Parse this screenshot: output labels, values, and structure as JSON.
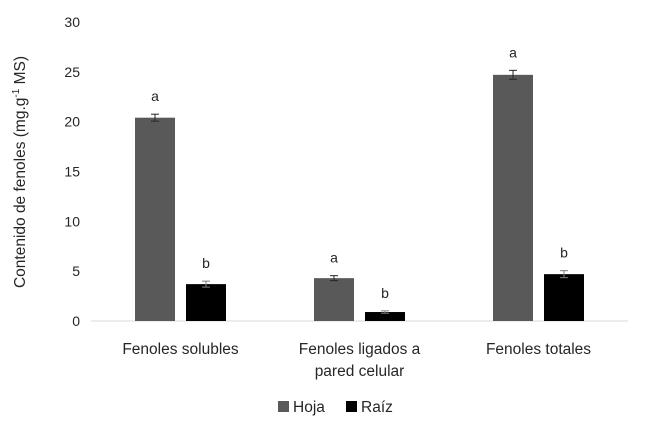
{
  "chart_data": {
    "type": "bar",
    "title": "",
    "xlabel": "",
    "ylabel": "Contenido de fenoles (mg.g",
    "ylabel_sup": "-1",
    "ylabel_tail": " MS)",
    "ylim": [
      0,
      30
    ],
    "yticks": [
      "0",
      "5",
      "10",
      "15",
      "20",
      "25",
      "30"
    ],
    "grid": false,
    "legend_position": "bottom",
    "categories": [
      [
        "Fenoles solubles"
      ],
      [
        "Fenoles ligados a",
        "pared celular"
      ],
      [
        "Fenoles totales"
      ]
    ],
    "series": [
      {
        "name": "Hoja",
        "color": "#595959",
        "values": [
          20.4,
          4.3,
          24.7
        ],
        "errors": [
          0.35,
          0.25,
          0.45
        ],
        "labels": [
          "a",
          "a",
          "a"
        ]
      },
      {
        "name": "Raíz",
        "color": "#000000",
        "values": [
          3.7,
          0.9,
          4.7
        ],
        "errors": [
          0.3,
          0.12,
          0.35
        ],
        "labels": [
          "b",
          "b",
          "b"
        ]
      }
    ]
  }
}
